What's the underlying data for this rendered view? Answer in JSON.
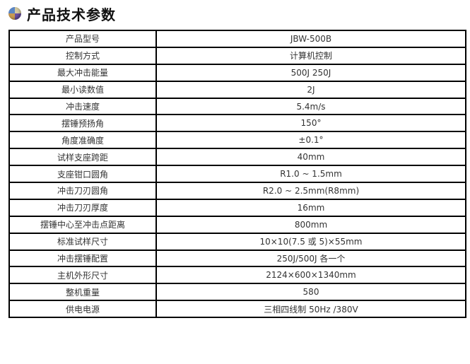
{
  "header": {
    "title": "产品技术参数",
    "icon": "colored-ball-bullet-icon"
  },
  "table": {
    "rows": [
      {
        "label": "产品型号",
        "value": "JBW-500B"
      },
      {
        "label": "控制方式",
        "value": "计算机控制"
      },
      {
        "label": "最大冲击能量",
        "value": "500J 250J"
      },
      {
        "label": "最小读数值",
        "value": "2J"
      },
      {
        "label": "冲击速度",
        "value": "5.4m/s"
      },
      {
        "label": "摆锤预扬角",
        "value": "150°"
      },
      {
        "label": "角度准确度",
        "value": "±0.1°"
      },
      {
        "label": "试样支座跨距",
        "value": "40mm"
      },
      {
        "label": "支座钳口圆角",
        "value": "R1.0 ~ 1.5mm"
      },
      {
        "label": "冲击刀刃圆角",
        "value": "R2.0 ~ 2.5mm(R8mm)"
      },
      {
        "label": "冲击刀刃厚度",
        "value": "16mm"
      },
      {
        "label": "摆锤中心至冲击点距离",
        "value": "800mm"
      },
      {
        "label": "标准试样尺寸",
        "value": "10×10(7.5 或 5)×55mm"
      },
      {
        "label": "冲击摆锤配置",
        "value": "250J/500J 各一个"
      },
      {
        "label": "主机外形尺寸",
        "value": "2124×600×1340mm"
      },
      {
        "label": "整机重量",
        "value": "580"
      },
      {
        "label": "供电电源",
        "value": "三相四线制 50Hz /380V"
      }
    ]
  }
}
